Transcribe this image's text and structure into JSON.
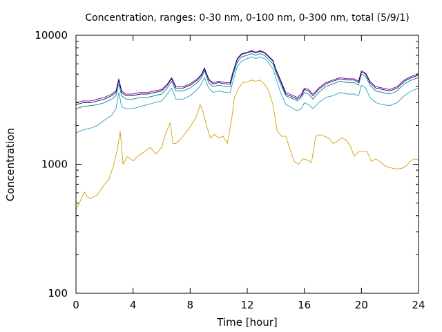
{
  "chart_data": {
    "type": "line",
    "title": "Concentration, ranges: 0-30 nm, 0-100 nm, 0-300 nm, total (5/9/1)",
    "xlabel": "Time [hour]",
    "ylabel": "Concentration",
    "xlim": [
      0,
      24
    ],
    "ylim": [
      100,
      10000
    ],
    "yscale": "log",
    "xticks": [
      0,
      4,
      8,
      12,
      16,
      20,
      24
    ],
    "xtick_labels": [
      "0",
      "4",
      "8",
      "12",
      "16",
      "20",
      "24"
    ],
    "yticks": [
      100,
      1000,
      10000
    ],
    "ytick_labels": [
      "100",
      "1000",
      "10000"
    ],
    "grid": false,
    "legend": "none",
    "series": [
      {
        "color": "#800080",
        "x": [
          0,
          0.5,
          1,
          1.5,
          2,
          2.5,
          2.8,
          3,
          3.2,
          3.5,
          4,
          4.5,
          5,
          5.5,
          6,
          6.4,
          6.7,
          7,
          7.5,
          8,
          8.5,
          8.8,
          9,
          9.3,
          9.6,
          10,
          10.5,
          10.8,
          11,
          11.3,
          11.6,
          12,
          12.3,
          12.6,
          12.9,
          13.2,
          13.5,
          13.8,
          14,
          14.3,
          14.7,
          15,
          15.5,
          15.8,
          16,
          16.3,
          16.6,
          17,
          17.5,
          18,
          18.5,
          19,
          19.5,
          19.8,
          20,
          20.3,
          20.6,
          21,
          21.5,
          22,
          22.5,
          23,
          23.5,
          24
        ],
        "y": [
          3000,
          3100,
          3100,
          3200,
          3300,
          3500,
          3700,
          4600,
          3700,
          3500,
          3500,
          3600,
          3600,
          3700,
          3800,
          4200,
          4700,
          4000,
          4000,
          4200,
          4600,
          5000,
          5600,
          4600,
          4300,
          4400,
          4300,
          4300,
          5200,
          6600,
          7200,
          7400,
          7600,
          7400,
          7600,
          7400,
          6900,
          6400,
          5500,
          4600,
          3600,
          3500,
          3300,
          3500,
          3900,
          3800,
          3500,
          3900,
          4300,
          4500,
          4700,
          4600,
          4600,
          4400,
          5300,
          5100,
          4400,
          4000,
          3900,
          3800,
          4000,
          4500,
          4800,
          5000
        ]
      },
      {
        "color": "#000080",
        "x": [
          0,
          0.5,
          1,
          1.5,
          2,
          2.5,
          2.8,
          3,
          3.2,
          3.5,
          4,
          4.5,
          5,
          5.5,
          6,
          6.4,
          6.7,
          7,
          7.5,
          8,
          8.5,
          8.8,
          9,
          9.3,
          9.6,
          10,
          10.5,
          10.8,
          11,
          11.3,
          11.6,
          12,
          12.3,
          12.6,
          12.9,
          13.2,
          13.5,
          13.8,
          14,
          14.3,
          14.7,
          15,
          15.5,
          15.8,
          16,
          16.3,
          16.6,
          17,
          17.5,
          18,
          18.5,
          19,
          19.5,
          19.8,
          20,
          20.3,
          20.6,
          21,
          21.5,
          22,
          22.5,
          23,
          23.5,
          24
        ],
        "y": [
          2900,
          3000,
          3000,
          3100,
          3200,
          3400,
          3600,
          4500,
          3600,
          3400,
          3400,
          3500,
          3500,
          3600,
          3700,
          4100,
          4600,
          3900,
          3900,
          4100,
          4500,
          4900,
          5500,
          4500,
          4200,
          4300,
          4200,
          4200,
          5100,
          6500,
          7100,
          7300,
          7500,
          7300,
          7500,
          7300,
          6800,
          6300,
          5400,
          4500,
          3500,
          3400,
          3200,
          3400,
          3800,
          3700,
          3400,
          3800,
          4200,
          4400,
          4600,
          4500,
          4500,
          4300,
          5200,
          5000,
          4300,
          3900,
          3800,
          3700,
          3900,
          4400,
          4700,
          4900
        ]
      },
      {
        "color": "#008080",
        "x": [
          0,
          0.5,
          1,
          1.5,
          2,
          2.5,
          2.8,
          3,
          3.2,
          3.5,
          4,
          4.5,
          5,
          5.5,
          6,
          6.4,
          6.7,
          7,
          7.5,
          8,
          8.5,
          8.8,
          9,
          9.3,
          9.6,
          10,
          10.5,
          10.8,
          11,
          11.3,
          11.6,
          12,
          12.3,
          12.6,
          12.9,
          13.2,
          13.5,
          13.8,
          14,
          14.3,
          14.7,
          15,
          15.5,
          15.8,
          16,
          16.3,
          16.6,
          17,
          17.5,
          18,
          18.5,
          19,
          19.5,
          19.8,
          20,
          20.3,
          20.6,
          21,
          21.5,
          22,
          22.5,
          23,
          23.5,
          24
        ],
        "y": [
          2700,
          2800,
          2850,
          2900,
          3000,
          3200,
          3400,
          4200,
          3400,
          3200,
          3200,
          3300,
          3300,
          3400,
          3500,
          3900,
          4400,
          3700,
          3700,
          3900,
          4300,
          4700,
          5300,
          4300,
          4000,
          4100,
          4000,
          4000,
          4900,
          6200,
          6800,
          7000,
          7200,
          7000,
          7200,
          7000,
          6500,
          6000,
          5200,
          4300,
          3400,
          3300,
          3100,
          3300,
          3600,
          3500,
          3200,
          3600,
          4000,
          4200,
          4400,
          4300,
          4300,
          4100,
          5000,
          4800,
          4100,
          3700,
          3600,
          3500,
          3700,
          4200,
          4500,
          4700
        ]
      },
      {
        "color": "#20a0c0",
        "x": [
          0,
          0.5,
          1,
          1.5,
          2,
          2.5,
          2.8,
          3,
          3.2,
          3.5,
          4,
          4.5,
          5,
          5.5,
          6,
          6.4,
          6.7,
          7,
          7.5,
          8,
          8.5,
          8.8,
          9,
          9.3,
          9.6,
          10,
          10.5,
          10.8,
          11,
          11.3,
          11.6,
          12,
          12.3,
          12.6,
          12.9,
          13.2,
          13.5,
          13.8,
          14,
          14.3,
          14.7,
          15,
          15.5,
          15.8,
          16,
          16.3,
          16.6,
          17,
          17.5,
          18,
          18.5,
          19,
          19.5,
          19.8,
          20,
          20.3,
          20.6,
          21,
          21.5,
          22,
          22.5,
          23,
          23.5,
          24
        ],
        "y": [
          1750,
          1850,
          1900,
          2000,
          2200,
          2400,
          2700,
          3600,
          2800,
          2700,
          2700,
          2800,
          2900,
          3000,
          3100,
          3500,
          3900,
          3200,
          3200,
          3400,
          3800,
          4200,
          4700,
          3900,
          3600,
          3700,
          3600,
          3600,
          4400,
          5700,
          6300,
          6600,
          6800,
          6600,
          6800,
          6600,
          6100,
          5500,
          4700,
          3700,
          2900,
          2800,
          2600,
          2700,
          3000,
          2900,
          2700,
          3000,
          3300,
          3400,
          3600,
          3500,
          3500,
          3400,
          4100,
          3900,
          3300,
          3000,
          2900,
          2850,
          3000,
          3400,
          3700,
          3900
        ]
      },
      {
        "color": "#d4a000",
        "x": [
          0,
          0.3,
          0.6,
          0.8,
          1,
          1.5,
          2,
          2.3,
          2.6,
          2.9,
          3.1,
          3.3,
          3.6,
          4,
          4.3,
          4.7,
          5.2,
          5.6,
          6,
          6.3,
          6.6,
          6.8,
          7,
          7.3,
          7.6,
          8,
          8.4,
          8.7,
          8.9,
          9.1,
          9.4,
          9.7,
          10,
          10.3,
          10.6,
          10.9,
          11.1,
          11.4,
          11.7,
          12,
          12.3,
          12.6,
          12.9,
          13.2,
          13.5,
          13.8,
          14.1,
          14.4,
          14.7,
          15,
          15.3,
          15.6,
          15.9,
          16.2,
          16.5,
          16.8,
          17.1,
          17.4,
          17.7,
          18,
          18.3,
          18.6,
          18.9,
          19.2,
          19.5,
          19.8,
          20.1,
          20.4,
          20.7,
          21,
          21.3,
          21.6,
          21.9,
          22.2,
          22.5,
          22.8,
          23.1,
          23.4,
          23.7,
          24
        ],
        "y": [
          440,
          520,
          610,
          560,
          540,
          580,
          700,
          760,
          950,
          1300,
          1800,
          1000,
          1150,
          1060,
          1150,
          1230,
          1350,
          1200,
          1350,
          1750,
          2100,
          1450,
          1450,
          1550,
          1700,
          1950,
          2300,
          2900,
          2550,
          2100,
          1600,
          1700,
          1600,
          1650,
          1450,
          2200,
          3300,
          3900,
          4300,
          4350,
          4500,
          4400,
          4500,
          4200,
          3700,
          2900,
          1800,
          1650,
          1650,
          1300,
          1050,
          1000,
          1100,
          1080,
          1030,
          1650,
          1700,
          1650,
          1600,
          1450,
          1500,
          1600,
          1550,
          1400,
          1150,
          1250,
          1250,
          1250,
          1050,
          1100,
          1050,
          980,
          950,
          930,
          920,
          930,
          960,
          1050,
          1100,
          1080
        ]
      }
    ]
  }
}
